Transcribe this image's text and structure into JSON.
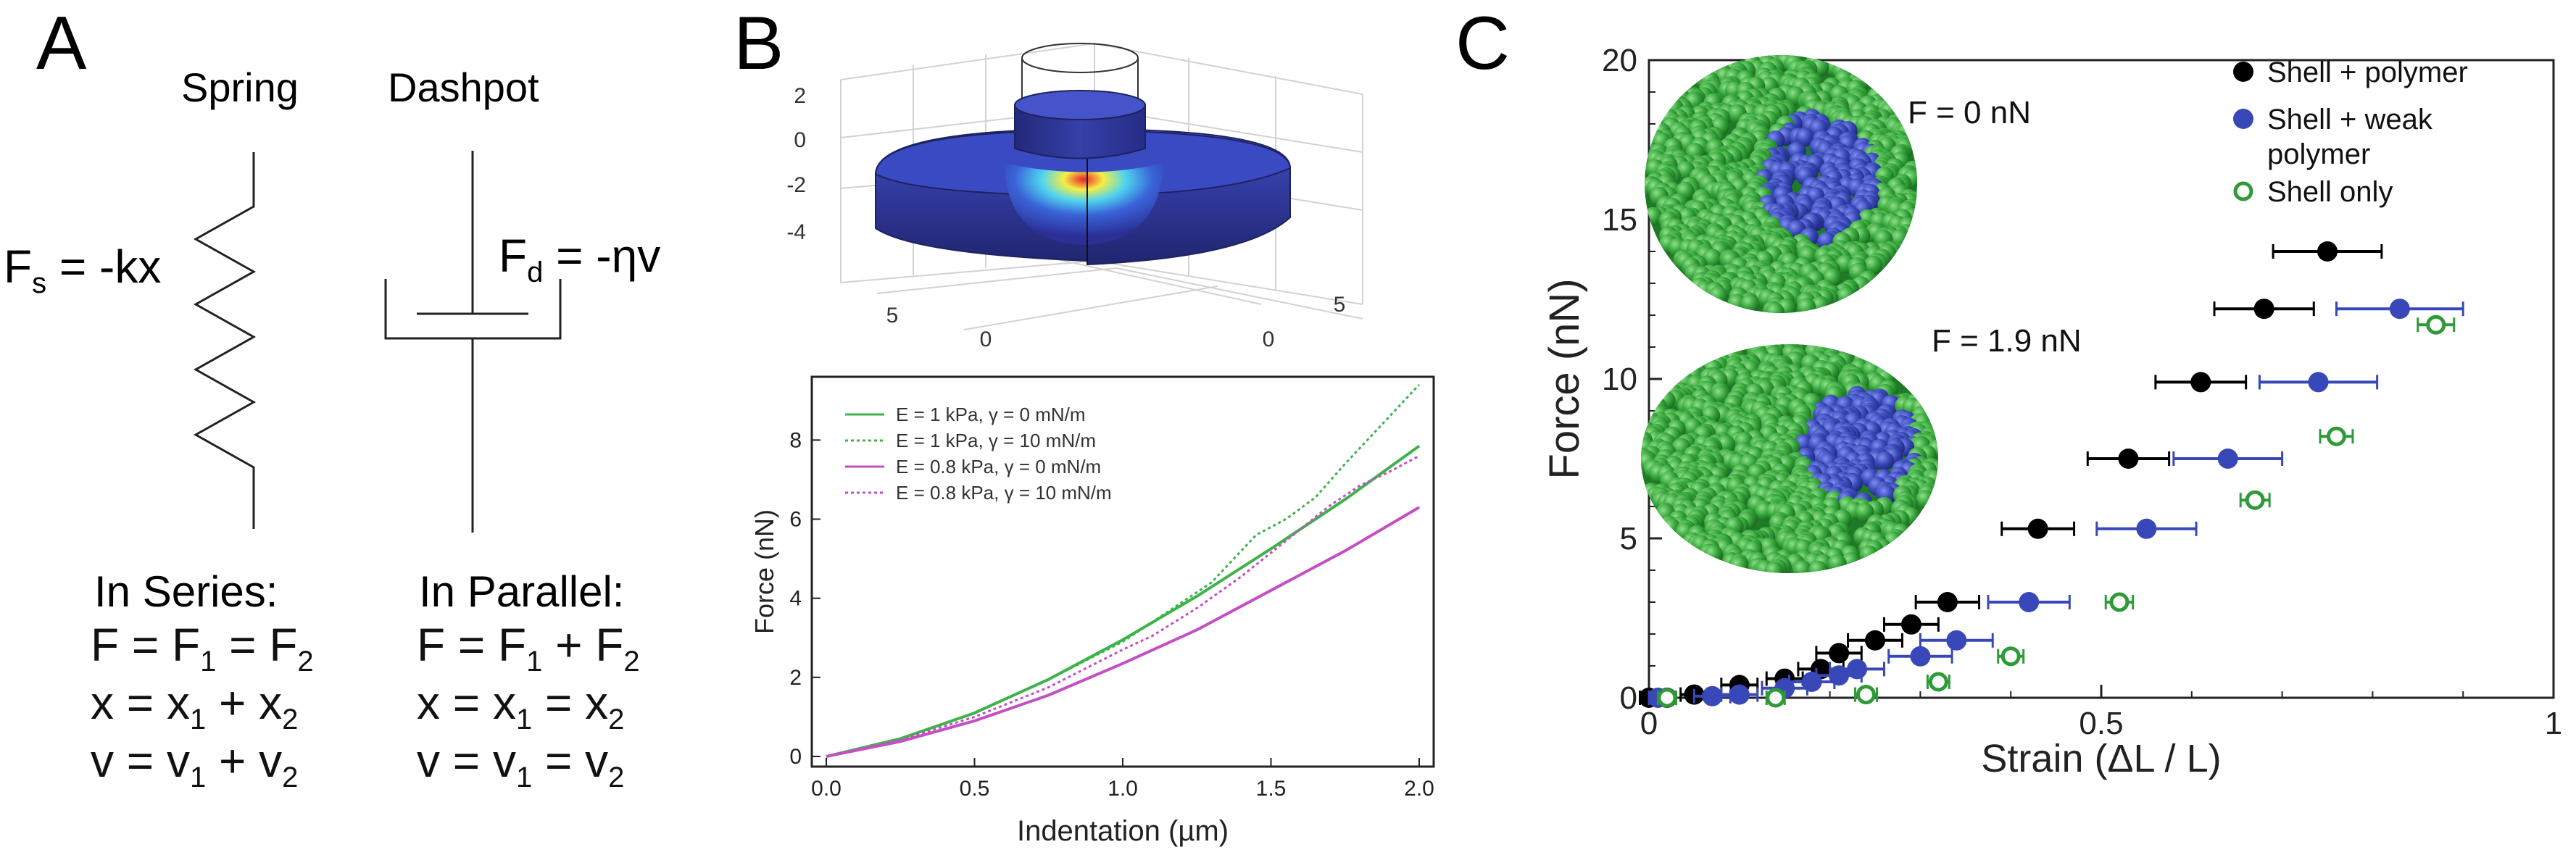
{
  "panel_a": {
    "letter": "A",
    "spring_label": "Spring",
    "dashpot_label": "Dashpot",
    "fs_equation": {
      "main": "F",
      "sub": "s",
      "rest": " = -kx"
    },
    "fd_equation": {
      "main": "F",
      "sub": "d",
      "rest": " = -ηv"
    },
    "series": {
      "heading": "In Series:",
      "lines": [
        {
          "parts": [
            {
              "t": "F = F"
            },
            {
              "t": "1",
              "sub": true
            },
            {
              "t": " = F"
            },
            {
              "t": "2",
              "sub": true
            }
          ]
        },
        {
          "parts": [
            {
              "t": "x = x"
            },
            {
              "t": "1",
              "sub": true
            },
            {
              "t": " + x"
            },
            {
              "t": "2",
              "sub": true
            }
          ]
        },
        {
          "parts": [
            {
              "t": "v = v"
            },
            {
              "t": "1",
              "sub": true
            },
            {
              "t": " + v"
            },
            {
              "t": "2",
              "sub": true
            }
          ]
        }
      ]
    },
    "parallel": {
      "heading": "In Parallel:",
      "lines": [
        {
          "parts": [
            {
              "t": "F = F"
            },
            {
              "t": "1",
              "sub": true
            },
            {
              "t": " + F"
            },
            {
              "t": "2",
              "sub": true
            }
          ]
        },
        {
          "parts": [
            {
              "t": "x = x"
            },
            {
              "t": "1",
              "sub": true
            },
            {
              "t": " = x"
            },
            {
              "t": "2",
              "sub": true
            }
          ]
        },
        {
          "parts": [
            {
              "t": "v = v"
            },
            {
              "t": "1",
              "sub": true
            },
            {
              "t": " = v"
            },
            {
              "t": "2",
              "sub": true
            }
          ]
        }
      ]
    }
  },
  "panel_b": {
    "letter": "B",
    "surface_z_ticks": [
      "2",
      "0",
      "-2",
      "-4"
    ],
    "surface_left_ticks": [
      "5",
      "0"
    ],
    "surface_right_ticks": [
      "5",
      "0"
    ],
    "colors": {
      "deep": "#2b2f96",
      "mid": "#3a63d8",
      "cyan": "#4fd3f0",
      "yellow": "#f4ee45",
      "red": "#e8232a"
    }
  },
  "panel_c": {
    "letter": "C",
    "snapshot_labels": [
      "F = 0 nN",
      "F = 1.9 nN"
    ],
    "colors": {
      "shell": "#2e9a38",
      "shell_light": "#6dcc6a",
      "polymer": "#3848b8",
      "black": "#000000"
    }
  },
  "chart_data": [
    {
      "type": "line",
      "title": "",
      "xlabel": "Indentation (µm)",
      "ylabel": "Force (nN)",
      "xlim": [
        0,
        2
      ],
      "ylim": [
        0,
        9.6
      ],
      "xticks": [
        0.0,
        0.5,
        1.0,
        1.5,
        2.0
      ],
      "xtick_labels": [
        "0.0",
        "0.5",
        "1.0",
        "1.5",
        "2.0"
      ],
      "yticks": [
        0,
        2,
        4,
        6,
        8
      ],
      "ytick_labels": [
        "0",
        "2",
        "4",
        "6",
        "8"
      ],
      "legend_position": "top-left",
      "series": [
        {
          "name": "E = 1 kPa, γ = 0 mN/m",
          "color": "#3db34a",
          "dash": "solid",
          "x": [
            0,
            0.25,
            0.5,
            0.75,
            1.0,
            1.25,
            1.5,
            1.75,
            2.0
          ],
          "y": [
            0,
            0.45,
            1.1,
            1.95,
            2.95,
            4.05,
            5.25,
            6.5,
            7.85
          ]
        },
        {
          "name": "E = 1 kPa, γ = 10 mN/m",
          "color": "#3db34a",
          "dash": "dotted",
          "x": [
            0,
            0.25,
            0.5,
            0.75,
            1.0,
            1.1,
            1.2,
            1.3,
            1.45,
            1.55,
            1.65,
            1.75,
            1.85,
            2.0
          ],
          "y": [
            0,
            0.45,
            1.1,
            1.95,
            2.9,
            3.4,
            3.9,
            4.4,
            5.6,
            6.0,
            6.55,
            7.4,
            8.2,
            9.4
          ]
        },
        {
          "name": "E = 0.8 kPa, γ = 0 mN/m",
          "color": "#c44fc4",
          "dash": "solid",
          "x": [
            0,
            0.25,
            0.5,
            0.75,
            1.0,
            1.25,
            1.5,
            1.75,
            2.0
          ],
          "y": [
            0,
            0.38,
            0.9,
            1.55,
            2.35,
            3.2,
            4.2,
            5.2,
            6.3
          ]
        },
        {
          "name": "E = 0.8 kPa, γ = 10 mN/m",
          "color": "#c44fc4",
          "dash": "dotted",
          "x": [
            0,
            0.25,
            0.5,
            0.75,
            1.0,
            1.1,
            1.25,
            1.4,
            1.55,
            1.7,
            1.8,
            1.9,
            2.0
          ],
          "y": [
            0,
            0.42,
            1.0,
            1.75,
            2.7,
            3.05,
            3.75,
            4.55,
            5.45,
            6.35,
            6.85,
            7.2,
            7.6
          ]
        }
      ]
    },
    {
      "type": "scatter",
      "title": "",
      "xlabel": "Strain (ΔL / L)",
      "ylabel": "Force (nN)",
      "xlim": [
        0,
        1
      ],
      "ylim": [
        0,
        20
      ],
      "xticks": [
        0,
        0.5,
        1
      ],
      "xtick_labels": [
        "0",
        "0.5",
        "1"
      ],
      "yticks": [
        0,
        5,
        10,
        15,
        20
      ],
      "ytick_labels": [
        "0",
        "5",
        "10",
        "15",
        "20"
      ],
      "legend_position": "top-right",
      "series": [
        {
          "name": "Shell + polymer",
          "color": "#000000",
          "marker": "filled",
          "points": [
            {
              "x": 0.0,
              "y": 0.0,
              "err": 0.01
            },
            {
              "x": 0.02,
              "y": 0.0,
              "err": 0.01
            },
            {
              "x": 0.05,
              "y": 0.1,
              "err": 0.015
            },
            {
              "x": 0.1,
              "y": 0.4,
              "err": 0.02
            },
            {
              "x": 0.15,
              "y": 0.6,
              "err": 0.02
            },
            {
              "x": 0.19,
              "y": 0.9,
              "err": 0.025
            },
            {
              "x": 0.21,
              "y": 1.4,
              "err": 0.025
            },
            {
              "x": 0.25,
              "y": 1.8,
              "err": 0.03
            },
            {
              "x": 0.29,
              "y": 2.3,
              "err": 0.03
            },
            {
              "x": 0.33,
              "y": 3.0,
              "err": 0.035
            },
            {
              "x": 0.43,
              "y": 5.3,
              "err": 0.04
            },
            {
              "x": 0.53,
              "y": 7.5,
              "err": 0.045
            },
            {
              "x": 0.61,
              "y": 9.9,
              "err": 0.05
            },
            {
              "x": 0.68,
              "y": 12.2,
              "err": 0.055
            },
            {
              "x": 0.75,
              "y": 14.0,
              "err": 0.06
            }
          ]
        },
        {
          "name": "Shell + weak polymer",
          "color": "#3848b8",
          "marker": "filled",
          "points": [
            {
              "x": 0.01,
              "y": 0.0,
              "err": 0.01
            },
            {
              "x": 0.07,
              "y": 0.05,
              "err": 0.02
            },
            {
              "x": 0.1,
              "y": 0.1,
              "err": 0.02
            },
            {
              "x": 0.15,
              "y": 0.3,
              "err": 0.025
            },
            {
              "x": 0.18,
              "y": 0.5,
              "err": 0.025
            },
            {
              "x": 0.21,
              "y": 0.7,
              "err": 0.025
            },
            {
              "x": 0.23,
              "y": 0.9,
              "err": 0.03
            },
            {
              "x": 0.3,
              "y": 1.3,
              "err": 0.035
            },
            {
              "x": 0.34,
              "y": 1.8,
              "err": 0.04
            },
            {
              "x": 0.42,
              "y": 3.0,
              "err": 0.045
            },
            {
              "x": 0.55,
              "y": 5.3,
              "err": 0.055
            },
            {
              "x": 0.64,
              "y": 7.5,
              "err": 0.06
            },
            {
              "x": 0.74,
              "y": 9.9,
              "err": 0.065
            },
            {
              "x": 0.83,
              "y": 12.2,
              "err": 0.07
            }
          ]
        },
        {
          "name": "Shell only",
          "color": "#2e9a38",
          "marker": "open",
          "points": [
            {
              "x": 0.02,
              "y": 0.0,
              "err": 0.01
            },
            {
              "x": 0.14,
              "y": 0.0,
              "err": 0.01
            },
            {
              "x": 0.24,
              "y": 0.1,
              "err": 0.012
            },
            {
              "x": 0.32,
              "y": 0.5,
              "err": 0.012
            },
            {
              "x": 0.4,
              "y": 1.3,
              "err": 0.014
            },
            {
              "x": 0.52,
              "y": 3.0,
              "err": 0.015
            },
            {
              "x": 0.67,
              "y": 6.2,
              "err": 0.016
            },
            {
              "x": 0.76,
              "y": 8.2,
              "err": 0.018
            },
            {
              "x": 0.87,
              "y": 11.7,
              "err": 0.02
            }
          ]
        }
      ]
    }
  ]
}
